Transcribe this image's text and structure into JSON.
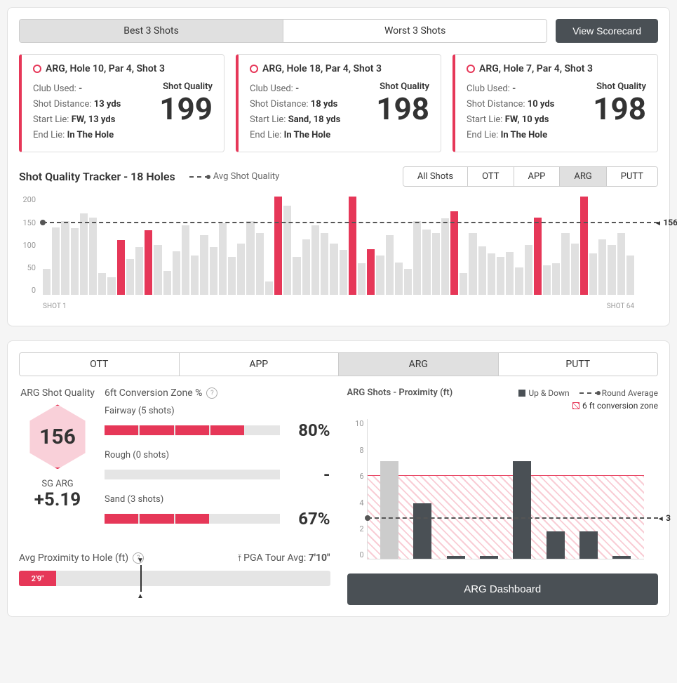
{
  "colors": {
    "accent": "#e63758",
    "bar_default": "#e0e0e0",
    "dark": "#4a5055",
    "hatch": "#e63758"
  },
  "top_tabs": {
    "best": "Best 3 Shots",
    "worst": "Worst 3 Shots",
    "active": 0
  },
  "scorecard_btn": "View Scorecard",
  "shot_cards": [
    {
      "title": "ARG, Hole 10, Par 4, Shot 3",
      "club": "-",
      "distance": "13 yds",
      "start_lie": "FW, 13 yds",
      "end_lie": "In The Hole",
      "quality": "199"
    },
    {
      "title": "ARG, Hole 18, Par 4, Shot 3",
      "club": "-",
      "distance": "18 yds",
      "start_lie": "Sand, 18 yds",
      "end_lie": "In The Hole",
      "quality": "198"
    },
    {
      "title": "ARG, Hole 7, Par 4, Shot 3",
      "club": "-",
      "distance": "10 yds",
      "start_lie": "FW, 10 yds",
      "end_lie": "In The Hole",
      "quality": "198"
    }
  ],
  "shot_labels": {
    "club": "Club Used:",
    "distance": "Shot Distance:",
    "start": "Start Lie:",
    "end": "End Lie:",
    "quality": "Shot Quality"
  },
  "tracker": {
    "title": "Shot Quality Tracker - 18 Holes",
    "avg_label": "Avg Shot Quality",
    "filters": [
      "All Shots",
      "OTT",
      "APP",
      "ARG",
      "PUTT"
    ],
    "filter_active": 3,
    "y_ticks": [
      "200",
      "150",
      "100",
      "50",
      "0"
    ],
    "avg_value": "156",
    "avg_pct": 22,
    "x_start": "SHOT 1",
    "x_end": "SHOT 64",
    "bars": [
      {
        "v": 26,
        "h": 0
      },
      {
        "v": 68,
        "h": 0
      },
      {
        "v": 74,
        "h": 0
      },
      {
        "v": 67,
        "h": 0
      },
      {
        "v": 82,
        "h": 0
      },
      {
        "v": 78,
        "h": 0
      },
      {
        "v": 22,
        "h": 0
      },
      {
        "v": 18,
        "h": 0
      },
      {
        "v": 55,
        "h": 1
      },
      {
        "v": 36,
        "h": 0
      },
      {
        "v": 48,
        "h": 0
      },
      {
        "v": 65,
        "h": 1
      },
      {
        "v": 50,
        "h": 0
      },
      {
        "v": 24,
        "h": 0
      },
      {
        "v": 44,
        "h": 0
      },
      {
        "v": 70,
        "h": 0
      },
      {
        "v": 40,
        "h": 0
      },
      {
        "v": 60,
        "h": 0
      },
      {
        "v": 48,
        "h": 0
      },
      {
        "v": 72,
        "h": 0
      },
      {
        "v": 38,
        "h": 0
      },
      {
        "v": 52,
        "h": 0
      },
      {
        "v": 74,
        "h": 0
      },
      {
        "v": 62,
        "h": 0
      },
      {
        "v": 14,
        "h": 0
      },
      {
        "v": 99,
        "h": 1
      },
      {
        "v": 90,
        "h": 0
      },
      {
        "v": 38,
        "h": 0
      },
      {
        "v": 56,
        "h": 0
      },
      {
        "v": 70,
        "h": 0
      },
      {
        "v": 62,
        "h": 0
      },
      {
        "v": 52,
        "h": 0
      },
      {
        "v": 45,
        "h": 0
      },
      {
        "v": 99,
        "h": 1
      },
      {
        "v": 32,
        "h": 0
      },
      {
        "v": 46,
        "h": 1
      },
      {
        "v": 40,
        "h": 0
      },
      {
        "v": 60,
        "h": 0
      },
      {
        "v": 33,
        "h": 0
      },
      {
        "v": 26,
        "h": 0
      },
      {
        "v": 74,
        "h": 0
      },
      {
        "v": 66,
        "h": 0
      },
      {
        "v": 62,
        "h": 0
      },
      {
        "v": 77,
        "h": 0
      },
      {
        "v": 84,
        "h": 1
      },
      {
        "v": 22,
        "h": 0
      },
      {
        "v": 62,
        "h": 0
      },
      {
        "v": 49,
        "h": 0
      },
      {
        "v": 42,
        "h": 0
      },
      {
        "v": 38,
        "h": 0
      },
      {
        "v": 43,
        "h": 0
      },
      {
        "v": 28,
        "h": 0
      },
      {
        "v": 50,
        "h": 0
      },
      {
        "v": 78,
        "h": 1
      },
      {
        "v": 30,
        "h": 0
      },
      {
        "v": 32,
        "h": 0
      },
      {
        "v": 62,
        "h": 0
      },
      {
        "v": 52,
        "h": 0
      },
      {
        "v": 99,
        "h": 1
      },
      {
        "v": 42,
        "h": 0
      },
      {
        "v": 56,
        "h": 0
      },
      {
        "v": 50,
        "h": 0
      },
      {
        "v": 62,
        "h": 0
      },
      {
        "v": 40,
        "h": 0
      }
    ]
  },
  "bottom_tabs": {
    "items": [
      "OTT",
      "APP",
      "ARG",
      "PUTT"
    ],
    "active": 2
  },
  "arg_quality": {
    "label": "ARG Shot Quality",
    "hex_value": "156",
    "sg_label": "SG ARG",
    "sg_value": "+5.19"
  },
  "conversion": {
    "header": "6ft Conversion Zone %",
    "rows": [
      {
        "label": "Fairway (5 shots)",
        "fill": 4,
        "total": 5,
        "pct": "80%"
      },
      {
        "label": "Rough (0 shots)",
        "fill": 0,
        "total": 5,
        "pct": "-"
      },
      {
        "label": "Sand (3 shots)",
        "fill": 3,
        "total": 5,
        "pct": "67%"
      }
    ]
  },
  "prox_slider": {
    "label": "Avg Proximity to Hole (ft)",
    "pga_label": "PGA Tour Avg:",
    "pga_value": "7'10\"",
    "value_label": "2'9\"",
    "fill_pct": 12,
    "marker_pct": 39
  },
  "prox_chart": {
    "title": "ARG Shots - Proximity (ft)",
    "legend_up": "Up & Down",
    "legend_avg": "Round Average",
    "legend_zone": "6 ft conversion zone",
    "y_ticks": [
      "10",
      "8",
      "6",
      "4",
      "2",
      "0"
    ],
    "zone_top_pct": 40,
    "avg_line_pct": 70,
    "avg_value": "3",
    "bars": [
      {
        "v": 70,
        "gray": 1
      },
      {
        "v": 40,
        "gray": 0
      },
      {
        "v": 2,
        "gray": 0
      },
      {
        "v": 2,
        "gray": 0
      },
      {
        "v": 70,
        "gray": 0
      },
      {
        "v": 20,
        "gray": 0
      },
      {
        "v": 20,
        "gray": 0
      },
      {
        "v": 2,
        "gray": 0
      }
    ]
  },
  "dashboard_btn": "ARG Dashboard"
}
